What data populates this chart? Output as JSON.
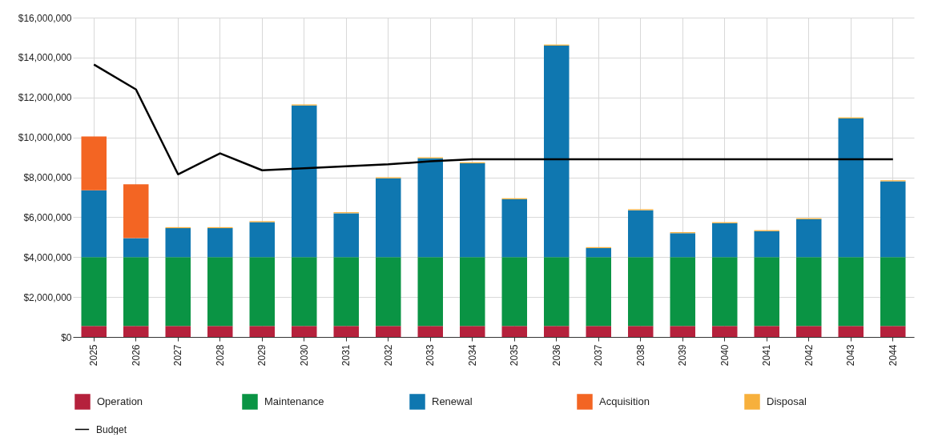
{
  "chart_data": {
    "type": "bar",
    "stacked": true,
    "grid": true,
    "legend": "bottom",
    "categories": [
      "2025",
      "2026",
      "2027",
      "2028",
      "2029",
      "2030",
      "2031",
      "2032",
      "2033",
      "2034",
      "2035",
      "2036",
      "2037",
      "2038",
      "2039",
      "2040",
      "2041",
      "2042",
      "2043",
      "2044"
    ],
    "ylim": [
      0,
      16000000
    ],
    "yticks": [
      {
        "value": 0,
        "label": "$0"
      },
      {
        "value": 2000000,
        "label": "$2,000,000"
      },
      {
        "value": 4000000,
        "label": "$4,000,000"
      },
      {
        "value": 6000000,
        "label": "$6,000,000"
      },
      {
        "value": 8000000,
        "label": "$8,000,000"
      },
      {
        "value": 10000000,
        "label": "$10,000,000"
      },
      {
        "value": 12000000,
        "label": "$12,000,000"
      },
      {
        "value": 14000000,
        "label": "$14,000,000"
      },
      {
        "value": 16000000,
        "label": "$16,000,000"
      }
    ],
    "series": [
      {
        "name": "Operation",
        "color": "#b5213c",
        "values": [
          550000,
          550000,
          550000,
          550000,
          550000,
          550000,
          550000,
          550000,
          550000,
          550000,
          550000,
          550000,
          550000,
          550000,
          550000,
          550000,
          550000,
          550000,
          550000,
          550000
        ]
      },
      {
        "name": "Maintenance",
        "color": "#0a9444",
        "values": [
          3450000,
          3450000,
          3450000,
          3450000,
          3450000,
          3450000,
          3450000,
          3450000,
          3450000,
          3450000,
          3450000,
          3450000,
          3450000,
          3450000,
          3450000,
          3450000,
          3450000,
          3450000,
          3450000,
          3450000
        ]
      },
      {
        "name": "Renewal",
        "color": "#0f77b0",
        "values": [
          3350000,
          950000,
          1450000,
          1450000,
          1750000,
          7600000,
          2200000,
          3950000,
          4950000,
          4700000,
          2900000,
          10600000,
          450000,
          2350000,
          1200000,
          1700000,
          1300000,
          1900000,
          6950000,
          3800000
        ]
      },
      {
        "name": "Acquisition",
        "color": "#f36523",
        "values": [
          2700000,
          2700000,
          0,
          0,
          0,
          0,
          0,
          0,
          0,
          0,
          0,
          0,
          0,
          0,
          0,
          0,
          0,
          0,
          0,
          0
        ]
      },
      {
        "name": "Disposal",
        "color": "#f7b03c",
        "values": [
          0,
          0,
          50000,
          50000,
          50000,
          50000,
          50000,
          50000,
          50000,
          50000,
          50000,
          50000,
          50000,
          50000,
          50000,
          50000,
          50000,
          50000,
          50000,
          50000
        ]
      },
      {
        "name": "Budget",
        "color": "#000000",
        "type": "line",
        "values": [
          13650000,
          12400000,
          8150000,
          9200000,
          8350000,
          8450000,
          8550000,
          8650000,
          8800000,
          8900000,
          8900000,
          8900000,
          8900000,
          8900000,
          8900000,
          8900000,
          8900000,
          8900000,
          8900000,
          8900000
        ]
      }
    ]
  }
}
